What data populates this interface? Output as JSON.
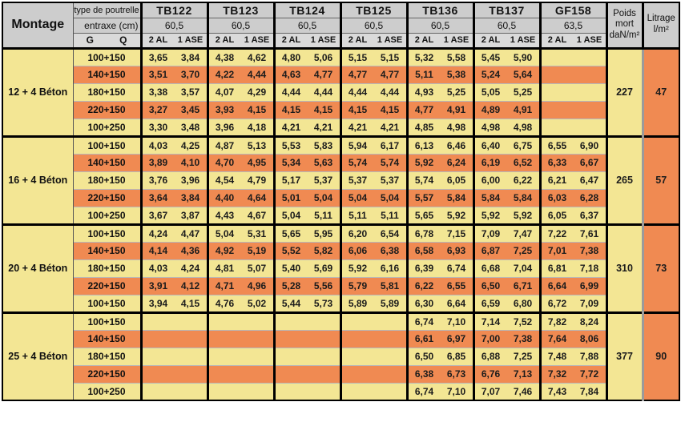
{
  "colors": {
    "yellow": "#f3e694",
    "orange": "#f08a52",
    "header_gray": "#cdcdcd",
    "header_gray_light": "#dadada",
    "divider_gray": "#9b9b9b",
    "border_black": "#000000"
  },
  "header": {
    "montage_label": "Montage",
    "type_label": "type de poutrelle",
    "entraxe_label": "entraxe (cm)",
    "g_label": "G",
    "q_label": "Q",
    "al_label": "2 AL",
    "ase_label": "1 ASE",
    "poids_label": "Poids mort daN/m²",
    "litrage_label": "Litrage l/m²",
    "beams": [
      {
        "name": "TB122",
        "entraxe": "60,5"
      },
      {
        "name": "TB123",
        "entraxe": "60,5"
      },
      {
        "name": "TB124",
        "entraxe": "60,5"
      },
      {
        "name": "TB125",
        "entraxe": "60,5"
      },
      {
        "name": "TB136",
        "entraxe": "60,5"
      },
      {
        "name": "TB137",
        "entraxe": "60,5"
      },
      {
        "name": "GF158",
        "entraxe": "63,5"
      }
    ]
  },
  "blocks": [
    {
      "montage": "12 + 4 Béton",
      "poids_mort": "227",
      "litrage": "47",
      "rows": [
        {
          "label": "100+150",
          "values": [
            "3,65",
            "3,84",
            "4,38",
            "4,62",
            "4,80",
            "5,06",
            "5,15",
            "5,15",
            "5,32",
            "5,58",
            "5,45",
            "5,90",
            "",
            ""
          ]
        },
        {
          "label": "140+150",
          "values": [
            "3,51",
            "3,70",
            "4,22",
            "4,44",
            "4,63",
            "4,77",
            "4,77",
            "4,77",
            "5,11",
            "5,38",
            "5,24",
            "5,64",
            "",
            ""
          ]
        },
        {
          "label": "180+150",
          "values": [
            "3,38",
            "3,57",
            "4,07",
            "4,29",
            "4,44",
            "4,44",
            "4,44",
            "4,44",
            "4,93",
            "5,25",
            "5,05",
            "5,25",
            "",
            ""
          ]
        },
        {
          "label": "220+150",
          "values": [
            "3,27",
            "3,45",
            "3,93",
            "4,15",
            "4,15",
            "4,15",
            "4,15",
            "4,15",
            "4,77",
            "4,91",
            "4,89",
            "4,91",
            "",
            ""
          ]
        },
        {
          "label": "100+250",
          "values": [
            "3,30",
            "3,48",
            "3,96",
            "4,18",
            "4,21",
            "4,21",
            "4,21",
            "4,21",
            "4,85",
            "4,98",
            "4,98",
            "4,98",
            "",
            ""
          ]
        }
      ]
    },
    {
      "montage": "16 + 4 Béton",
      "poids_mort": "265",
      "litrage": "57",
      "rows": [
        {
          "label": "100+150",
          "values": [
            "4,03",
            "4,25",
            "4,87",
            "5,13",
            "5,53",
            "5,83",
            "5,94",
            "6,17",
            "6,13",
            "6,46",
            "6,40",
            "6,75",
            "6,55",
            "6,90"
          ]
        },
        {
          "label": "140+150",
          "values": [
            "3,89",
            "4,10",
            "4,70",
            "4,95",
            "5,34",
            "5,63",
            "5,74",
            "5,74",
            "5,92",
            "6,24",
            "6,19",
            "6,52",
            "6,33",
            "6,67"
          ]
        },
        {
          "label": "180+150",
          "values": [
            "3,76",
            "3,96",
            "4,54",
            "4,79",
            "5,17",
            "5,37",
            "5,37",
            "5,37",
            "5,74",
            "6,05",
            "6,00",
            "6,22",
            "6,21",
            "6,47"
          ]
        },
        {
          "label": "220+150",
          "values": [
            "3,64",
            "3,84",
            "4,40",
            "4,64",
            "5,01",
            "5,04",
            "5,04",
            "5,04",
            "5,57",
            "5,84",
            "5,84",
            "5,84",
            "6,03",
            "6,28"
          ]
        },
        {
          "label": "100+250",
          "values": [
            "3,67",
            "3,87",
            "4,43",
            "4,67",
            "5,04",
            "5,11",
            "5,11",
            "5,11",
            "5,65",
            "5,92",
            "5,92",
            "5,92",
            "6,05",
            "6,37"
          ]
        }
      ]
    },
    {
      "montage": "20 + 4 Béton",
      "poids_mort": "310",
      "litrage": "73",
      "rows": [
        {
          "label": "100+150",
          "values": [
            "4,24",
            "4,47",
            "5,04",
            "5,31",
            "5,65",
            "5,95",
            "6,20",
            "6,54",
            "6,78",
            "7,15",
            "7,09",
            "7,47",
            "7,22",
            "7,61"
          ]
        },
        {
          "label": "140+150",
          "values": [
            "4,14",
            "4,36",
            "4,92",
            "5,19",
            "5,52",
            "5,82",
            "6,06",
            "6,38",
            "6,58",
            "6,93",
            "6,87",
            "7,25",
            "7,01",
            "7,38"
          ]
        },
        {
          "label": "180+150",
          "values": [
            "4,03",
            "4,24",
            "4,81",
            "5,07",
            "5,40",
            "5,69",
            "5,92",
            "6,16",
            "6,39",
            "6,74",
            "6,68",
            "7,04",
            "6,81",
            "7,18"
          ]
        },
        {
          "label": "220+150",
          "values": [
            "3,91",
            "4,12",
            "4,71",
            "4,96",
            "5,28",
            "5,56",
            "5,79",
            "5,81",
            "6,22",
            "6,55",
            "6,50",
            "6,71",
            "6,64",
            "6,99"
          ]
        },
        {
          "label": "100+150",
          "values": [
            "3,94",
            "4,15",
            "4,76",
            "5,02",
            "5,44",
            "5,73",
            "5,89",
            "5,89",
            "6,30",
            "6,64",
            "6,59",
            "6,80",
            "6,72",
            "7,09"
          ]
        }
      ]
    },
    {
      "montage": "25 + 4 Béton",
      "poids_mort": "377",
      "litrage": "90",
      "rows": [
        {
          "label": "100+150",
          "values": [
            "",
            "",
            "",
            "",
            "",
            "",
            "",
            "",
            "6,74",
            "7,10",
            "7,14",
            "7,52",
            "7,82",
            "8,24"
          ]
        },
        {
          "label": "140+150",
          "values": [
            "",
            "",
            "",
            "",
            "",
            "",
            "",
            "",
            "6,61",
            "6,97",
            "7,00",
            "7,38",
            "7,64",
            "8,06"
          ]
        },
        {
          "label": "180+150",
          "values": [
            "",
            "",
            "",
            "",
            "",
            "",
            "",
            "",
            "6,50",
            "6,85",
            "6,88",
            "7,25",
            "7,48",
            "7,88"
          ]
        },
        {
          "label": "220+150",
          "values": [
            "",
            "",
            "",
            "",
            "",
            "",
            "",
            "",
            "6,38",
            "6,73",
            "6,76",
            "7,13",
            "7,32",
            "7,72"
          ]
        },
        {
          "label": "100+250",
          "values": [
            "",
            "",
            "",
            "",
            "",
            "",
            "",
            "",
            "6,74",
            "7,10",
            "7,07",
            "7,46",
            "7,43",
            "7,84"
          ]
        }
      ]
    }
  ]
}
